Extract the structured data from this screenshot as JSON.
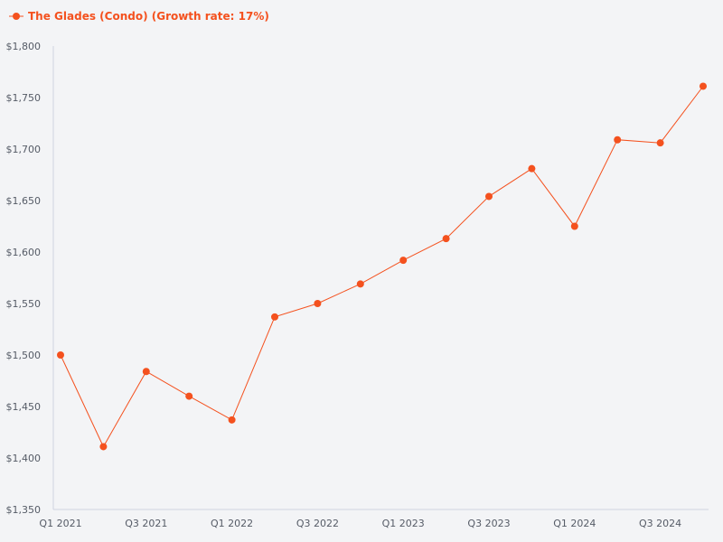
{
  "chart_data": {
    "type": "line",
    "title": "",
    "xlabel": "",
    "ylabel": "",
    "legend": {
      "placement": "top-left",
      "entries": [
        "The Glades (Condo) (Growth rate: 17%)"
      ]
    },
    "grid": false,
    "ylim": [
      1350,
      1800
    ],
    "y_ticks": [
      1350,
      1400,
      1450,
      1500,
      1550,
      1600,
      1650,
      1700,
      1750,
      1800
    ],
    "y_tick_labels": [
      "$1,350",
      "$1,400",
      "$1,450",
      "$1,500",
      "$1,550",
      "$1,600",
      "$1,650",
      "$1,700",
      "$1,750",
      "$1,800"
    ],
    "categories": [
      "Q1 2021",
      "Q2 2021",
      "Q3 2021",
      "Q4 2021",
      "Q1 2022",
      "Q2 2022",
      "Q3 2022",
      "Q4 2022",
      "Q1 2023",
      "Q2 2023",
      "Q3 2023",
      "Q4 2023",
      "Q1 2024",
      "Q2 2024",
      "Q3 2024",
      "Q4 2024"
    ],
    "x_tick_labels": [
      "Q1 2021",
      "Q3 2021",
      "Q1 2022",
      "Q3 2022",
      "Q1 2023",
      "Q3 2023",
      "Q1 2024",
      "Q3 2024"
    ],
    "series": [
      {
        "name": "The Glades (Condo) (Growth rate: 17%)",
        "color": "#f4511e",
        "values": [
          1500,
          1411,
          1484,
          1460,
          1437,
          1537,
          1550,
          1569,
          1592,
          1613,
          1654,
          1681,
          1625,
          1709,
          1706,
          1761
        ]
      }
    ]
  }
}
